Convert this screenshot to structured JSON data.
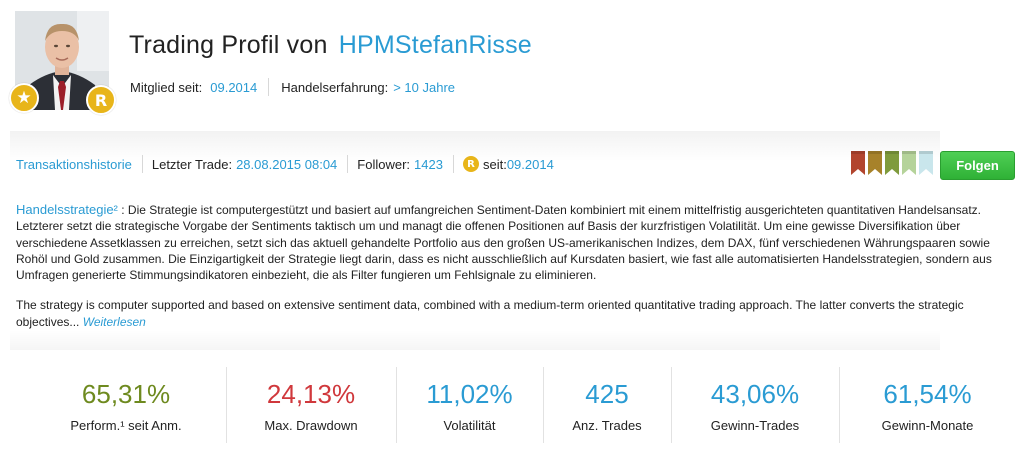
{
  "header": {
    "title_prefix": "Trading Profil von",
    "username": "HPMStefanRisse",
    "member_since_label": "Mitglied seit:",
    "member_since_value": "09.2014",
    "experience_label": "Handelserfahrung:",
    "experience_value": "> 10 Jahre",
    "badges": {
      "star_icon": "star-icon",
      "r_icon": "R"
    }
  },
  "infobar": {
    "history_link": "Transaktionshistorie",
    "last_trade_label": "Letzter Trade:",
    "last_trade_value": "28.08.2015 08:04",
    "follower_label": "Follower:",
    "follower_value": "1423",
    "r_badge": "R",
    "since_label": "seit:",
    "since_value": "09.2014",
    "follow_button": "Folgen",
    "ribbon_colors": [
      "#b2452e",
      "#a7822a",
      "#7f9b3c",
      "#b5d39a",
      "#c9e6ec"
    ]
  },
  "strategy": {
    "label": "Handelsstrategie²",
    "text_de": ": Die Strategie ist computergestützt und basiert auf umfangreichen Sentiment-Daten kombiniert mit einem mittelfristig ausgerichteten quantitativen Handelsansatz. Letzterer setzt die strategische Vorgabe der Sentiments taktisch um und managt die offenen Positionen auf Basis der kurzfristigen Volatilität. Um eine gewisse Diversifikation über verschiedene Assetklassen zu erreichen, setzt sich das aktuell gehandelte Portfolio aus den großen US-amerikanischen Indizes, dem DAX, fünf verschiedenen Währungspaaren sowie Rohöl und Gold zusammen. Die Einzigartigkeit der Strategie liegt darin, dass es nicht ausschließlich auf Kursdaten basiert, wie fast alle automatisierten Handelsstrategien, sondern aus Umfragen generierte Stimmungsindikatoren einbezieht, die als Filter fungieren um Fehlsignale zu eliminieren.",
    "text_en": "The strategy is computer supported and based on extensive sentiment data, combined with a medium-term oriented quantitative trading approach. The latter converts the strategic objectives...",
    "read_more": "Weiterlesen"
  },
  "stats": [
    {
      "value": "65,31%",
      "label": "Perform.¹ seit Anm.",
      "color": "#6e8a1f"
    },
    {
      "value": "24,13%",
      "label": "Max. Drawdown",
      "color": "#d0383c"
    },
    {
      "value": "11,02%",
      "label": "Volatilität",
      "color": "#2a9bd3"
    },
    {
      "value": "425",
      "label": "Anz. Trades",
      "color": "#2a9bd3"
    },
    {
      "value": "43,06%",
      "label": "Gewinn-Trades",
      "color": "#2a9bd3"
    },
    {
      "value": "61,54%",
      "label": "Gewinn-Monate",
      "color": "#2a9bd3"
    }
  ]
}
